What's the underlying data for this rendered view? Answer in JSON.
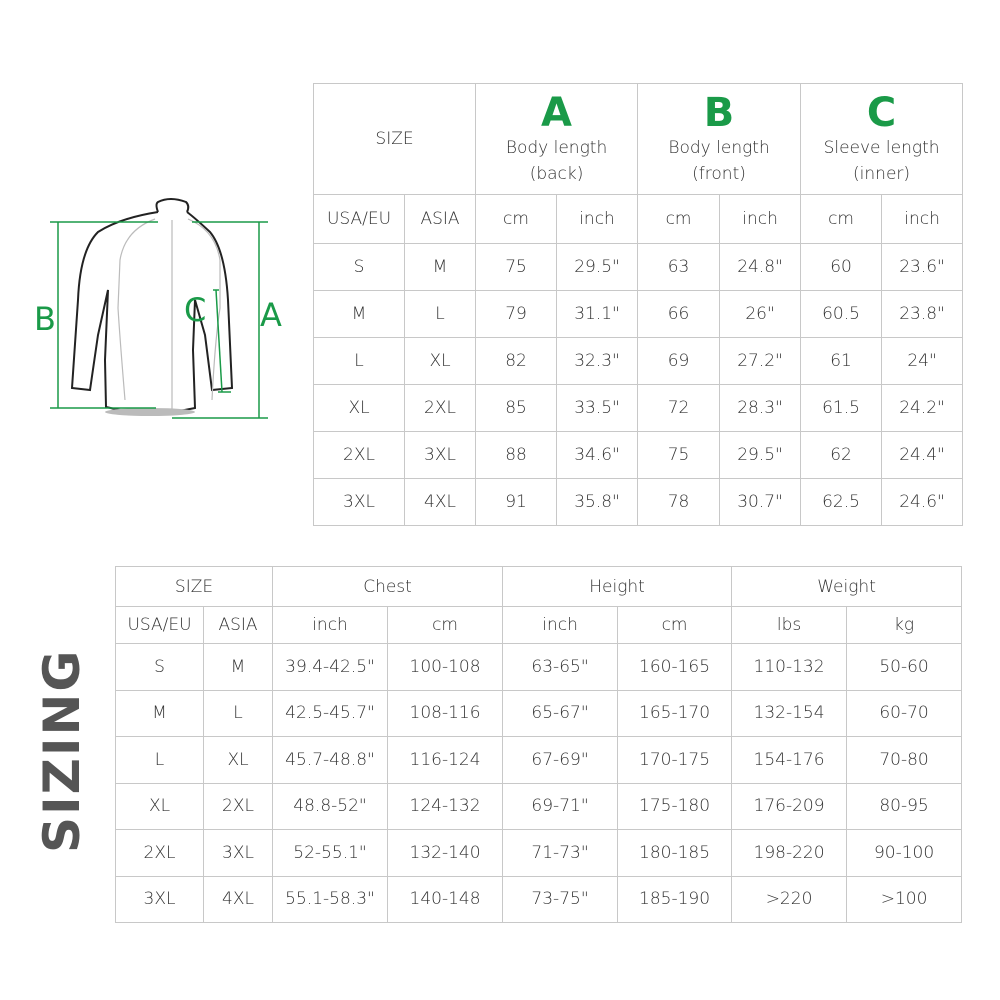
{
  "accent_color": "#1a9a48",
  "diagram": {
    "label_a": "A",
    "label_b": "B",
    "label_c": "C"
  },
  "table1": {
    "size_label": "SIZE",
    "groups": [
      {
        "letter": "A",
        "line1": "Body length",
        "line2": "(back)"
      },
      {
        "letter": "B",
        "line1": "Body length",
        "line2": "(front)"
      },
      {
        "letter": "C",
        "line1": "Sleeve length",
        "line2": "(inner)"
      }
    ],
    "subheaders": [
      "USA/EU",
      "ASIA",
      "cm",
      "inch",
      "cm",
      "inch",
      "cm",
      "inch"
    ],
    "rows": [
      [
        "S",
        "M",
        "75",
        "29.5\"",
        "63",
        "24.8\"",
        "60",
        "23.6\""
      ],
      [
        "M",
        "L",
        "79",
        "31.1\"",
        "66",
        "26\"",
        "60.5",
        "23.8\""
      ],
      [
        "L",
        "XL",
        "82",
        "32.3\"",
        "69",
        "27.2\"",
        "61",
        "24\""
      ],
      [
        "XL",
        "2XL",
        "85",
        "33.5\"",
        "72",
        "28.3\"",
        "61.5",
        "24.2\""
      ],
      [
        "2XL",
        "3XL",
        "88",
        "34.6\"",
        "75",
        "29.5\"",
        "62",
        "24.4\""
      ],
      [
        "3XL",
        "4XL",
        "91",
        "35.8\"",
        "78",
        "30.7\"",
        "62.5",
        "24.6\""
      ]
    ]
  },
  "table2": {
    "size_label": "SIZE",
    "groups": [
      "Chest",
      "Height",
      "Weight"
    ],
    "subheaders": [
      "USA/EU",
      "ASIA",
      "inch",
      "cm",
      "inch",
      "cm",
      "lbs",
      "kg"
    ],
    "rows": [
      [
        "S",
        "M",
        "39.4-42.5\"",
        "100-108",
        "63-65\"",
        "160-165",
        "110-132",
        "50-60"
      ],
      [
        "M",
        "L",
        "42.5-45.7\"",
        "108-116",
        "65-67\"",
        "165-170",
        "132-154",
        "60-70"
      ],
      [
        "L",
        "XL",
        "45.7-48.8\"",
        "116-124",
        "67-69\"",
        "170-175",
        "154-176",
        "70-80"
      ],
      [
        "XL",
        "2XL",
        "48.8-52\"",
        "124-132",
        "69-71\"",
        "175-180",
        "176-209",
        "80-95"
      ],
      [
        "2XL",
        "3XL",
        "52-55.1\"",
        "132-140",
        "71-73\"",
        "180-185",
        "198-220",
        "90-100"
      ],
      [
        "3XL",
        "4XL",
        "55.1-58.3\"",
        "140-148",
        "73-75\"",
        "185-190",
        ">220",
        ">100"
      ]
    ]
  },
  "side_title": "SIZING"
}
